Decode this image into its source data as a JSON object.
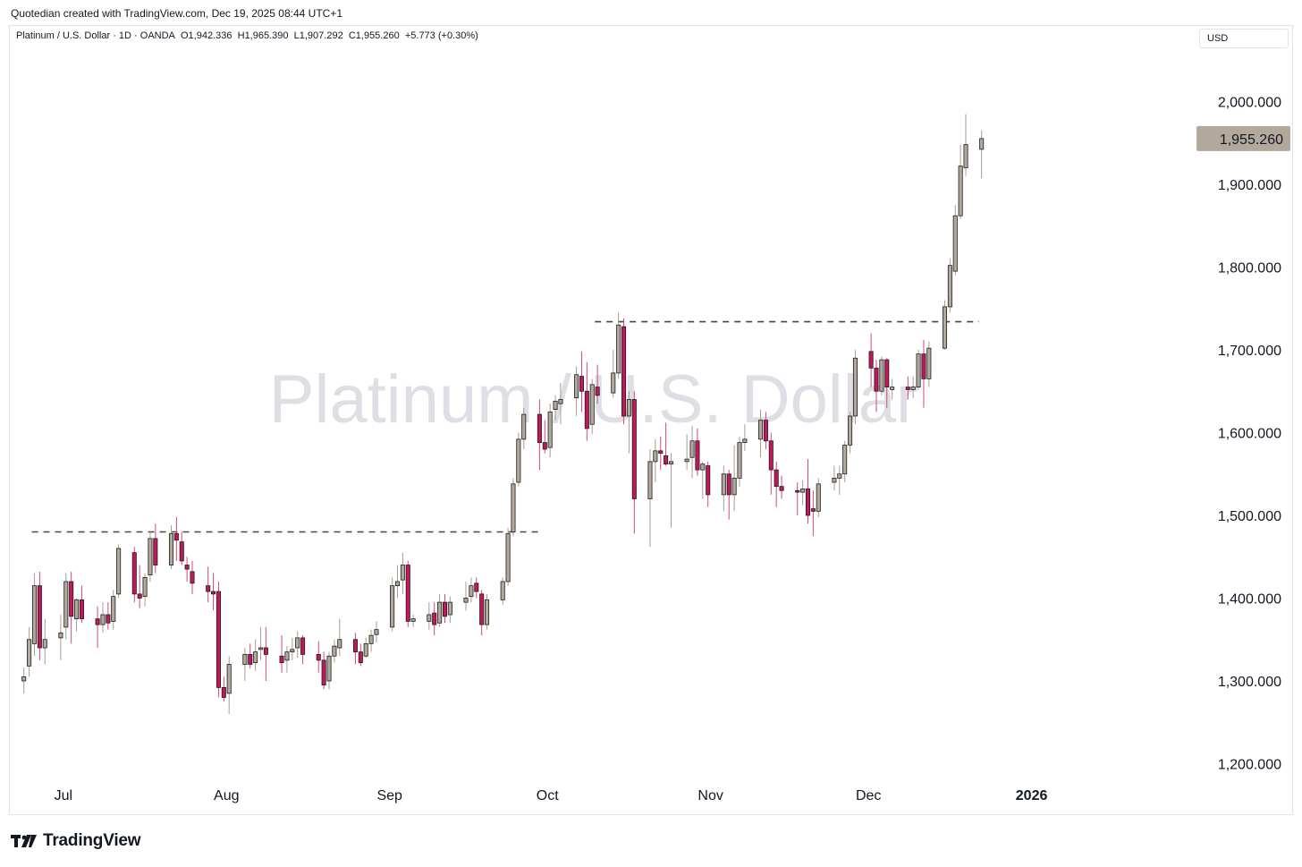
{
  "header": {
    "attribution": "Quotedian created with TradingView.com, Dec 19, 2025 08:44 UTC+1"
  },
  "legend": {
    "symbol": "Platinum / U.S. Dollar · 1D · OANDA",
    "open": "O1,942.336",
    "high": "H1,965.390",
    "low": "L1,907.292",
    "close": "C1,955.260",
    "change": "+5.773 (+0.30%)"
  },
  "currency_label": "USD",
  "watermark": "Platinum / U.S. Dollar",
  "footer": {
    "brand": "TradingView"
  },
  "colors": {
    "up": "#b2a89c",
    "down": "#c2185b",
    "text": "#131722",
    "grid_border": "#e0e3eb",
    "last_price_bg": "#b2a89c"
  },
  "chart_data": {
    "type": "candlestick",
    "ylim": [
      1180,
      2060
    ],
    "y_ticks": [
      1200,
      1300,
      1400,
      1500,
      1600,
      1700,
      1800,
      1900,
      2000
    ],
    "y_tick_labels": [
      "1,200.000",
      "1,300.000",
      "1,400.000",
      "1,500.000",
      "1,600.000",
      "1,700.000",
      "1,800.000",
      "1,900.000",
      "2,000.000"
    ],
    "x_labels": [
      "Jul",
      "Aug",
      "Sep",
      "Oct",
      "Nov",
      "Dec",
      "2026"
    ],
    "x_label_dates": [
      "2025-07-01",
      "2025-08-01",
      "2025-09-01",
      "2025-10-01",
      "2025-11-01",
      "2025-12-01",
      "2026-01-01"
    ],
    "last_price": 1955.26,
    "last_price_label": "1,955.260",
    "levels": [
      {
        "value": 1480,
        "from": "2025-06-25",
        "to": "2025-09-30"
      },
      {
        "value": 1734,
        "from": "2025-10-10",
        "to": "2025-12-22"
      }
    ],
    "candles": [
      {
        "d": "2025-06-23",
        "o": 1300,
        "h": 1316,
        "l": 1285,
        "c": 1305
      },
      {
        "d": "2025-06-24",
        "o": 1318,
        "h": 1365,
        "l": 1305,
        "c": 1350
      },
      {
        "d": "2025-06-25",
        "o": 1345,
        "h": 1430,
        "l": 1330,
        "c": 1415
      },
      {
        "d": "2025-06-26",
        "o": 1415,
        "h": 1432,
        "l": 1325,
        "c": 1340
      },
      {
        "d": "2025-06-27",
        "o": 1340,
        "h": 1375,
        "l": 1320,
        "c": 1350
      },
      {
        "d": "2025-06-30",
        "o": 1352,
        "h": 1380,
        "l": 1325,
        "c": 1358
      },
      {
        "d": "2025-07-01",
        "o": 1365,
        "h": 1430,
        "l": 1350,
        "c": 1420
      },
      {
        "d": "2025-07-02",
        "o": 1420,
        "h": 1432,
        "l": 1345,
        "c": 1378
      },
      {
        "d": "2025-07-03",
        "o": 1375,
        "h": 1400,
        "l": 1360,
        "c": 1398
      },
      {
        "d": "2025-07-04",
        "o": 1398,
        "h": 1415,
        "l": 1370,
        "c": 1375
      },
      {
        "d": "2025-07-07",
        "o": 1375,
        "h": 1390,
        "l": 1340,
        "c": 1368
      },
      {
        "d": "2025-07-08",
        "o": 1368,
        "h": 1395,
        "l": 1358,
        "c": 1380
      },
      {
        "d": "2025-07-09",
        "o": 1380,
        "h": 1395,
        "l": 1362,
        "c": 1370
      },
      {
        "d": "2025-07-10",
        "o": 1372,
        "h": 1410,
        "l": 1362,
        "c": 1402
      },
      {
        "d": "2025-07-11",
        "o": 1405,
        "h": 1465,
        "l": 1400,
        "c": 1460
      },
      {
        "d": "2025-07-14",
        "o": 1455,
        "h": 1462,
        "l": 1395,
        "c": 1405
      },
      {
        "d": "2025-07-15",
        "o": 1405,
        "h": 1440,
        "l": 1388,
        "c": 1400
      },
      {
        "d": "2025-07-16",
        "o": 1402,
        "h": 1430,
        "l": 1390,
        "c": 1425
      },
      {
        "d": "2025-07-17",
        "o": 1428,
        "h": 1480,
        "l": 1420,
        "c": 1472
      },
      {
        "d": "2025-07-18",
        "o": 1472,
        "h": 1490,
        "l": 1430,
        "c": 1440
      },
      {
        "d": "2025-07-21",
        "o": 1440,
        "h": 1488,
        "l": 1435,
        "c": 1478
      },
      {
        "d": "2025-07-22",
        "o": 1478,
        "h": 1498,
        "l": 1445,
        "c": 1470
      },
      {
        "d": "2025-07-23",
        "o": 1468,
        "h": 1480,
        "l": 1440,
        "c": 1445
      },
      {
        "d": "2025-07-24",
        "o": 1440,
        "h": 1450,
        "l": 1420,
        "c": 1435
      },
      {
        "d": "2025-07-25",
        "o": 1432,
        "h": 1445,
        "l": 1405,
        "c": 1418
      },
      {
        "d": "2025-07-28",
        "o": 1415,
        "h": 1438,
        "l": 1395,
        "c": 1408
      },
      {
        "d": "2025-07-29",
        "o": 1408,
        "h": 1430,
        "l": 1385,
        "c": 1405
      },
      {
        "d": "2025-07-30",
        "o": 1408,
        "h": 1420,
        "l": 1280,
        "c": 1292
      },
      {
        "d": "2025-07-31",
        "o": 1292,
        "h": 1305,
        "l": 1275,
        "c": 1280
      },
      {
        "d": "2025-08-01",
        "o": 1285,
        "h": 1330,
        "l": 1260,
        "c": 1320
      },
      {
        "d": "2025-08-04",
        "o": 1320,
        "h": 1340,
        "l": 1300,
        "c": 1332
      },
      {
        "d": "2025-08-05",
        "o": 1332,
        "h": 1345,
        "l": 1315,
        "c": 1320
      },
      {
        "d": "2025-08-06",
        "o": 1322,
        "h": 1350,
        "l": 1312,
        "c": 1335
      },
      {
        "d": "2025-08-07",
        "o": 1338,
        "h": 1365,
        "l": 1325,
        "c": 1340
      },
      {
        "d": "2025-08-08",
        "o": 1340,
        "h": 1365,
        "l": 1300,
        "c": 1332
      },
      {
        "d": "2025-08-11",
        "o": 1330,
        "h": 1355,
        "l": 1310,
        "c": 1322
      },
      {
        "d": "2025-08-12",
        "o": 1325,
        "h": 1342,
        "l": 1310,
        "c": 1335
      },
      {
        "d": "2025-08-13",
        "o": 1335,
        "h": 1352,
        "l": 1325,
        "c": 1338
      },
      {
        "d": "2025-08-14",
        "o": 1340,
        "h": 1360,
        "l": 1328,
        "c": 1352
      },
      {
        "d": "2025-08-15",
        "o": 1352,
        "h": 1355,
        "l": 1320,
        "c": 1332
      },
      {
        "d": "2025-08-18",
        "o": 1332,
        "h": 1348,
        "l": 1310,
        "c": 1325
      },
      {
        "d": "2025-08-19",
        "o": 1325,
        "h": 1335,
        "l": 1290,
        "c": 1295
      },
      {
        "d": "2025-08-20",
        "o": 1300,
        "h": 1335,
        "l": 1290,
        "c": 1330
      },
      {
        "d": "2025-08-21",
        "o": 1330,
        "h": 1350,
        "l": 1322,
        "c": 1342
      },
      {
        "d": "2025-08-22",
        "o": 1340,
        "h": 1375,
        "l": 1330,
        "c": 1350
      },
      {
        "d": "2025-08-25",
        "o": 1350,
        "h": 1358,
        "l": 1320,
        "c": 1335
      },
      {
        "d": "2025-08-26",
        "o": 1335,
        "h": 1345,
        "l": 1318,
        "c": 1322
      },
      {
        "d": "2025-08-27",
        "o": 1330,
        "h": 1352,
        "l": 1328,
        "c": 1345
      },
      {
        "d": "2025-08-28",
        "o": 1345,
        "h": 1362,
        "l": 1335,
        "c": 1355
      },
      {
        "d": "2025-08-29",
        "o": 1356,
        "h": 1372,
        "l": 1346,
        "c": 1362
      },
      {
        "d": "2025-09-01",
        "o": 1365,
        "h": 1425,
        "l": 1360,
        "c": 1415
      },
      {
        "d": "2025-09-02",
        "o": 1415,
        "h": 1440,
        "l": 1400,
        "c": 1420
      },
      {
        "d": "2025-09-03",
        "o": 1422,
        "h": 1455,
        "l": 1405,
        "c": 1440
      },
      {
        "d": "2025-09-04",
        "o": 1440,
        "h": 1445,
        "l": 1365,
        "c": 1372
      },
      {
        "d": "2025-09-05",
        "o": 1372,
        "h": 1380,
        "l": 1365,
        "c": 1375
      },
      {
        "d": "2025-09-08",
        "o": 1372,
        "h": 1395,
        "l": 1362,
        "c": 1380
      },
      {
        "d": "2025-09-09",
        "o": 1382,
        "h": 1395,
        "l": 1355,
        "c": 1368
      },
      {
        "d": "2025-09-10",
        "o": 1370,
        "h": 1405,
        "l": 1365,
        "c": 1395
      },
      {
        "d": "2025-09-11",
        "o": 1395,
        "h": 1405,
        "l": 1370,
        "c": 1378
      },
      {
        "d": "2025-09-12",
        "o": 1380,
        "h": 1402,
        "l": 1370,
        "c": 1395
      },
      {
        "d": "2025-09-15",
        "o": 1395,
        "h": 1420,
        "l": 1385,
        "c": 1400
      },
      {
        "d": "2025-09-16",
        "o": 1402,
        "h": 1425,
        "l": 1395,
        "c": 1415
      },
      {
        "d": "2025-09-17",
        "o": 1418,
        "h": 1425,
        "l": 1400,
        "c": 1408
      },
      {
        "d": "2025-09-18",
        "o": 1405,
        "h": 1410,
        "l": 1355,
        "c": 1368
      },
      {
        "d": "2025-09-19",
        "o": 1368,
        "h": 1405,
        "l": 1362,
        "c": 1398
      },
      {
        "d": "2025-09-22",
        "o": 1398,
        "h": 1425,
        "l": 1392,
        "c": 1420
      },
      {
        "d": "2025-09-23",
        "o": 1420,
        "h": 1485,
        "l": 1415,
        "c": 1478
      },
      {
        "d": "2025-09-24",
        "o": 1480,
        "h": 1545,
        "l": 1475,
        "c": 1538
      },
      {
        "d": "2025-09-25",
        "o": 1540,
        "h": 1600,
        "l": 1535,
        "c": 1592
      },
      {
        "d": "2025-09-26",
        "o": 1592,
        "h": 1630,
        "l": 1580,
        "c": 1622
      },
      {
        "d": "2025-09-29",
        "o": 1622,
        "h": 1640,
        "l": 1555,
        "c": 1588
      },
      {
        "d": "2025-09-30",
        "o": 1588,
        "h": 1615,
        "l": 1575,
        "c": 1580
      },
      {
        "d": "2025-10-01",
        "o": 1582,
        "h": 1635,
        "l": 1570,
        "c": 1625
      },
      {
        "d": "2025-10-02",
        "o": 1628,
        "h": 1645,
        "l": 1615,
        "c": 1638
      },
      {
        "d": "2025-10-03",
        "o": 1635,
        "h": 1660,
        "l": 1610,
        "c": 1640
      },
      {
        "d": "2025-10-06",
        "o": 1642,
        "h": 1680,
        "l": 1620,
        "c": 1670
      },
      {
        "d": "2025-10-07",
        "o": 1668,
        "h": 1698,
        "l": 1625,
        "c": 1650
      },
      {
        "d": "2025-10-08",
        "o": 1650,
        "h": 1685,
        "l": 1590,
        "c": 1605
      },
      {
        "d": "2025-10-09",
        "o": 1610,
        "h": 1665,
        "l": 1598,
        "c": 1658
      },
      {
        "d": "2025-10-10",
        "o": 1655,
        "h": 1682,
        "l": 1635,
        "c": 1645
      },
      {
        "d": "2025-10-13",
        "o": 1648,
        "h": 1700,
        "l": 1642,
        "c": 1672
      },
      {
        "d": "2025-10-14",
        "o": 1672,
        "h": 1745,
        "l": 1665,
        "c": 1730
      },
      {
        "d": "2025-10-15",
        "o": 1728,
        "h": 1738,
        "l": 1610,
        "c": 1620
      },
      {
        "d": "2025-10-16",
        "o": 1620,
        "h": 1650,
        "l": 1575,
        "c": 1640
      },
      {
        "d": "2025-10-17",
        "o": 1640,
        "h": 1650,
        "l": 1478,
        "c": 1520
      },
      {
        "d": "2025-10-20",
        "o": 1520,
        "h": 1580,
        "l": 1462,
        "c": 1565
      },
      {
        "d": "2025-10-21",
        "o": 1565,
        "h": 1592,
        "l": 1540,
        "c": 1578
      },
      {
        "d": "2025-10-22",
        "o": 1578,
        "h": 1595,
        "l": 1555,
        "c": 1575
      },
      {
        "d": "2025-10-23",
        "o": 1572,
        "h": 1612,
        "l": 1560,
        "c": 1562
      },
      {
        "d": "2025-10-24",
        "o": 1562,
        "h": 1575,
        "l": 1485,
        "c": 1565
      },
      {
        "d": "2025-10-27",
        "o": 1565,
        "h": 1598,
        "l": 1555,
        "c": 1568
      },
      {
        "d": "2025-10-28",
        "o": 1570,
        "h": 1608,
        "l": 1545,
        "c": 1590
      },
      {
        "d": "2025-10-29",
        "o": 1590,
        "h": 1605,
        "l": 1548,
        "c": 1555
      },
      {
        "d": "2025-10-30",
        "o": 1555,
        "h": 1565,
        "l": 1520,
        "c": 1562
      },
      {
        "d": "2025-10-31",
        "o": 1560,
        "h": 1565,
        "l": 1510,
        "c": 1525
      },
      {
        "d": "2025-11-03",
        "o": 1525,
        "h": 1560,
        "l": 1505,
        "c": 1550
      },
      {
        "d": "2025-11-04",
        "o": 1550,
        "h": 1555,
        "l": 1495,
        "c": 1525
      },
      {
        "d": "2025-11-05",
        "o": 1525,
        "h": 1585,
        "l": 1505,
        "c": 1545
      },
      {
        "d": "2025-11-06",
        "o": 1545,
        "h": 1595,
        "l": 1535,
        "c": 1588
      },
      {
        "d": "2025-11-07",
        "o": 1588,
        "h": 1610,
        "l": 1578,
        "c": 1592
      },
      {
        "d": "2025-11-10",
        "o": 1592,
        "h": 1628,
        "l": 1570,
        "c": 1615
      },
      {
        "d": "2025-11-11",
        "o": 1615,
        "h": 1625,
        "l": 1580,
        "c": 1590
      },
      {
        "d": "2025-11-12",
        "o": 1590,
        "h": 1600,
        "l": 1525,
        "c": 1555
      },
      {
        "d": "2025-11-13",
        "o": 1555,
        "h": 1565,
        "l": 1510,
        "c": 1535
      },
      {
        "d": "2025-11-14",
        "o": 1535,
        "h": 1548,
        "l": 1520,
        "c": 1530
      },
      {
        "d": "2025-11-17",
        "o": 1530,
        "h": 1540,
        "l": 1500,
        "c": 1528
      },
      {
        "d": "2025-11-18",
        "o": 1528,
        "h": 1542,
        "l": 1512,
        "c": 1532
      },
      {
        "d": "2025-11-19",
        "o": 1532,
        "h": 1568,
        "l": 1490,
        "c": 1500
      },
      {
        "d": "2025-11-20",
        "o": 1508,
        "h": 1530,
        "l": 1475,
        "c": 1505
      },
      {
        "d": "2025-11-21",
        "o": 1505,
        "h": 1545,
        "l": 1498,
        "c": 1538
      },
      {
        "d": "2025-11-24",
        "o": 1540,
        "h": 1560,
        "l": 1530,
        "c": 1545
      },
      {
        "d": "2025-11-25",
        "o": 1545,
        "h": 1560,
        "l": 1525,
        "c": 1550
      },
      {
        "d": "2025-11-26",
        "o": 1550,
        "h": 1590,
        "l": 1540,
        "c": 1585
      },
      {
        "d": "2025-11-27",
        "o": 1585,
        "h": 1625,
        "l": 1575,
        "c": 1620
      },
      {
        "d": "2025-11-28",
        "o": 1620,
        "h": 1700,
        "l": 1610,
        "c": 1690
      },
      {
        "d": "2025-12-01",
        "o": 1698,
        "h": 1720,
        "l": 1655,
        "c": 1678
      },
      {
        "d": "2025-12-02",
        "o": 1678,
        "h": 1688,
        "l": 1625,
        "c": 1650
      },
      {
        "d": "2025-12-03",
        "o": 1650,
        "h": 1692,
        "l": 1645,
        "c": 1688
      },
      {
        "d": "2025-12-04",
        "o": 1688,
        "h": 1690,
        "l": 1630,
        "c": 1655
      },
      {
        "d": "2025-12-05",
        "o": 1652,
        "h": 1665,
        "l": 1640,
        "c": 1655
      },
      {
        "d": "2025-12-08",
        "o": 1655,
        "h": 1668,
        "l": 1640,
        "c": 1652
      },
      {
        "d": "2025-12-09",
        "o": 1652,
        "h": 1668,
        "l": 1642,
        "c": 1655
      },
      {
        "d": "2025-12-10",
        "o": 1655,
        "h": 1700,
        "l": 1652,
        "c": 1695
      },
      {
        "d": "2025-12-11",
        "o": 1695,
        "h": 1712,
        "l": 1630,
        "c": 1665
      },
      {
        "d": "2025-12-12",
        "o": 1665,
        "h": 1710,
        "l": 1655,
        "c": 1702
      },
      {
        "d": "2025-12-15",
        "o": 1702,
        "h": 1760,
        "l": 1700,
        "c": 1752
      },
      {
        "d": "2025-12-16",
        "o": 1752,
        "h": 1810,
        "l": 1745,
        "c": 1802
      },
      {
        "d": "2025-12-17",
        "o": 1795,
        "h": 1875,
        "l": 1790,
        "c": 1862
      },
      {
        "d": "2025-12-18",
        "o": 1862,
        "h": 1948,
        "l": 1858,
        "c": 1922
      },
      {
        "d": "2025-12-19",
        "o": 1920,
        "h": 1985,
        "l": 1910,
        "c": 1948
      },
      {
        "d": "2025-12-22",
        "o": 1942.336,
        "h": 1965.39,
        "l": 1907.292,
        "c": 1955.26
      }
    ]
  }
}
